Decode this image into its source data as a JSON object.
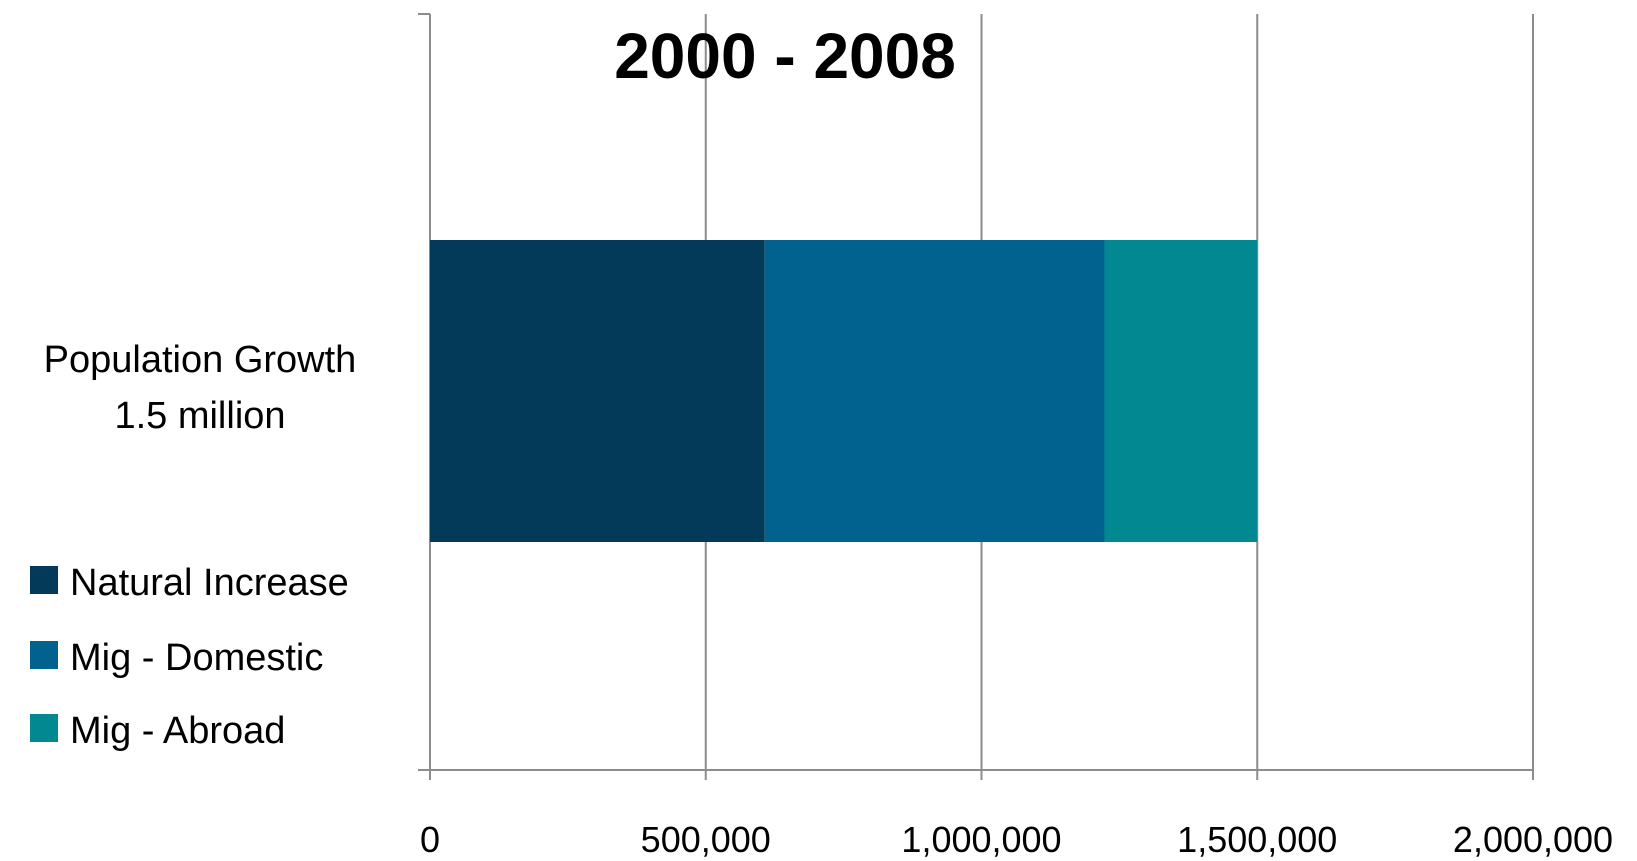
{
  "chart_data": {
    "type": "bar",
    "orientation": "horizontal",
    "stacked": true,
    "title": "2000 - 2008",
    "categories": [
      "Population Growth 1.5 million"
    ],
    "category_label_lines": [
      "Population Growth",
      "1.5 million"
    ],
    "series": [
      {
        "name": "Natural Increase",
        "values": [
          607000
        ],
        "color": "#033A5A"
      },
      {
        "name": "Mig - Domestic",
        "values": [
          616000
        ],
        "color": "#02628F"
      },
      {
        "name": "Mig - Abroad",
        "values": [
          277000
        ],
        "color": "#028890"
      }
    ],
    "xlim": [
      0,
      2000000
    ],
    "x_ticks": [
      0,
      500000,
      1000000,
      1500000,
      2000000
    ],
    "x_tick_labels": [
      "0",
      "500,000",
      "1,000,000",
      "1,500,000",
      "2,000,000"
    ],
    "grid": true,
    "legend_position": "left"
  }
}
